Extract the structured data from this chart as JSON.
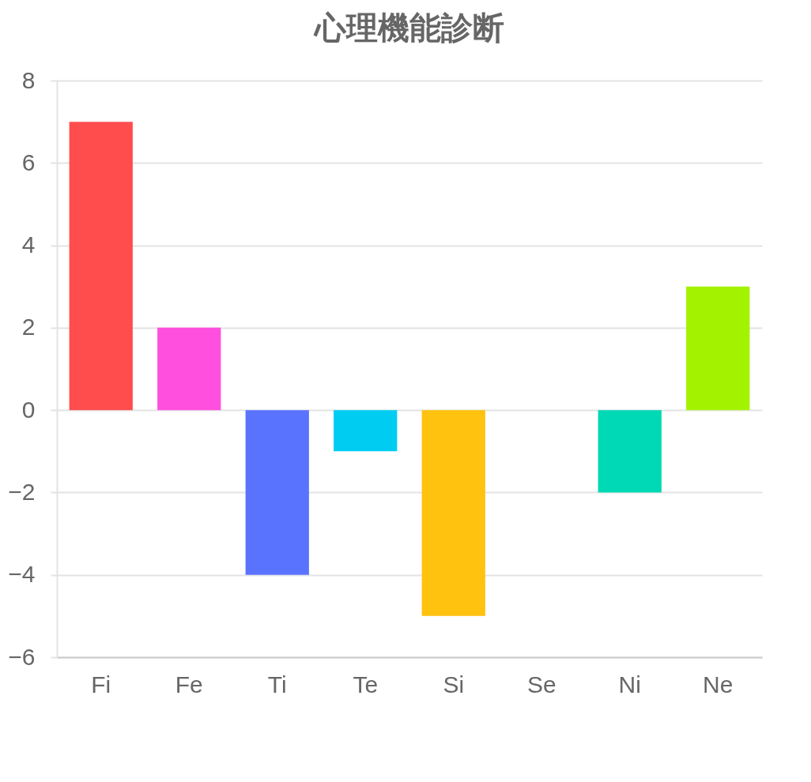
{
  "chart_data": {
    "type": "bar",
    "title": "心理機能診断",
    "categories": [
      "Fi",
      "Fe",
      "Ti",
      "Te",
      "Si",
      "Se",
      "Ni",
      "Ne"
    ],
    "values": [
      7,
      2,
      -4,
      -1,
      -5,
      0,
      -2,
      3
    ],
    "colors": [
      "#ff4d4d",
      "#ff4fde",
      "#5a73ff",
      "#00ccf2",
      "#ffc20e",
      "#9966ff",
      "#00d9b5",
      "#a3f200"
    ],
    "ylim": [
      -6,
      8
    ],
    "yticks": [
      -6,
      -4,
      -2,
      0,
      2,
      4,
      6,
      8
    ],
    "grid": "y"
  }
}
